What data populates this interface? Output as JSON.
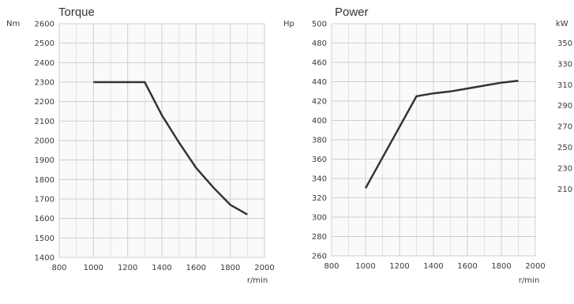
{
  "chart_data": [
    {
      "type": "line",
      "title": "Torque",
      "ylabel": "Nm",
      "xlabel": "r/min",
      "xlim": [
        800,
        2000
      ],
      "ylim": [
        1400,
        2600
      ],
      "x_ticks": [
        800,
        1000,
        1200,
        1400,
        1600,
        1800,
        2000
      ],
      "y_ticks": [
        1400,
        1500,
        1600,
        1700,
        1800,
        1900,
        2000,
        2100,
        2200,
        2300,
        2400,
        2500,
        2600
      ],
      "grid": true,
      "series": [
        {
          "x": [
            1000,
            1300,
            1400,
            1500,
            1600,
            1700,
            1800,
            1900
          ],
          "y": [
            2300,
            2300,
            2130,
            1990,
            1860,
            1760,
            1670,
            1620
          ]
        }
      ]
    },
    {
      "type": "line",
      "title": "Power",
      "ylabel": "Hp",
      "xlabel": "r/min",
      "y2label": "kW",
      "xlim": [
        800,
        2000
      ],
      "ylim": [
        260,
        500
      ],
      "x_ticks": [
        800,
        1000,
        1200,
        1400,
        1600,
        1800,
        2000
      ],
      "y_ticks": [
        260,
        280,
        300,
        320,
        340,
        360,
        380,
        400,
        420,
        440,
        460,
        480,
        500
      ],
      "y2_ticks": [
        210,
        230,
        250,
        270,
        290,
        310,
        330,
        350
      ],
      "grid": true,
      "series": [
        {
          "x": [
            1000,
            1300,
            1400,
            1500,
            1600,
            1700,
            1800,
            1900
          ],
          "y": [
            330,
            425,
            428,
            430,
            433,
            436,
            439,
            441
          ]
        }
      ]
    }
  ]
}
